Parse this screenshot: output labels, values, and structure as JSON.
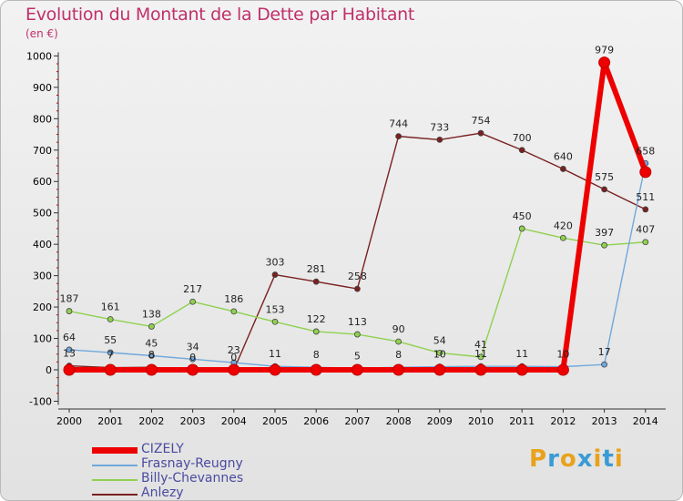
{
  "title": "Evolution du Montant de la Dette par Habitant",
  "subtitle": "(en €)",
  "logo": "Proxiti",
  "colors": {
    "title": "#c0306a",
    "logo_letters": [
      "#e8a21c",
      "#3a9bd5",
      "#e8a21c",
      "#3a9bd5",
      "#e8a21c",
      "#3a9bd5",
      "#e8a21c"
    ]
  },
  "chart_data": {
    "type": "line",
    "title": "Evolution du Montant de la Dette par Habitant",
    "ylabel": "(en €)",
    "xlabel": "",
    "x": [
      "2000",
      "2001",
      "2002",
      "2003",
      "2004",
      "2005",
      "2006",
      "2007",
      "2008",
      "2009",
      "2010",
      "2011",
      "2012",
      "2013",
      "2014"
    ],
    "yticks": [
      -100,
      0,
      100,
      200,
      300,
      400,
      500,
      600,
      700,
      800,
      900,
      1000
    ],
    "ylim": [
      -100,
      1000
    ],
    "grid": false,
    "legend_position": "bottom-left",
    "series": [
      {
        "name": "CIZELY",
        "color": "#ee0000",
        "values": [
          0,
          0,
          0,
          0,
          0,
          0,
          0,
          0,
          0,
          0,
          0,
          0,
          0,
          979,
          630
        ],
        "labels": [
          "",
          "",
          "",
          "",
          "",
          "",
          "",
          "",
          "",
          "",
          "",
          "",
          "",
          "979",
          ""
        ]
      },
      {
        "name": "Frasnay-Reugny",
        "color": "#6fa8dc",
        "values": [
          64,
          55,
          45,
          34,
          23,
          11,
          8,
          5,
          8,
          10,
          11,
          11,
          10,
          17,
          658
        ],
        "labels": [
          "64",
          "55",
          "45",
          "34",
          "23",
          "11",
          "8",
          "5",
          "8",
          "10",
          "11",
          "11",
          "10",
          "17",
          "658"
        ]
      },
      {
        "name": "Billy-Chevannes",
        "color": "#8fd14f",
        "values": [
          187,
          161,
          138,
          217,
          186,
          153,
          122,
          113,
          90,
          54,
          41,
          450,
          420,
          397,
          407
        ],
        "labels": [
          "187",
          "161",
          "138",
          "217",
          "186",
          "153",
          "122",
          "113",
          "90",
          "54",
          "41",
          "450",
          "420",
          "397",
          "407"
        ]
      },
      {
        "name": "Anlezy",
        "color": "#7a2020",
        "values": [
          13,
          7,
          8,
          0,
          0,
          303,
          281,
          258,
          744,
          733,
          754,
          700,
          640,
          575,
          511
        ],
        "labels": [
          "13",
          "7",
          "8",
          "0",
          "0",
          "303",
          "281",
          "258",
          "744",
          "733",
          "754",
          "700",
          "640",
          "575",
          "511"
        ]
      }
    ]
  }
}
